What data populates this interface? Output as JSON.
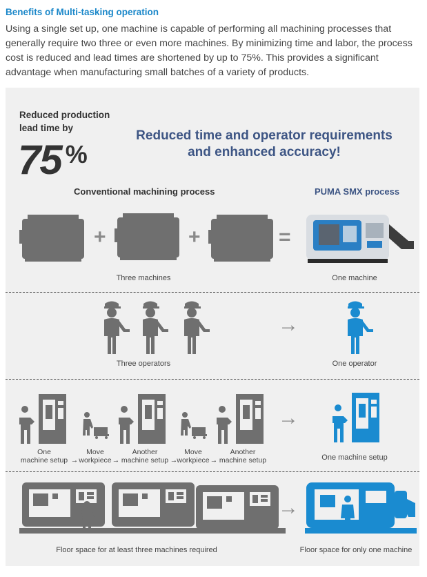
{
  "heading": "Benefits of Multi-tasking operation",
  "intro": "Using a single set up, one machine is capable of performing all machining processes that generally require two three or even more machines. By minimizing time and labor, the process cost is reduced and lead times are shortened by up to 75%. This provides a significant advantage when manufacturing small batches of a variety of products.",
  "lead_time": {
    "label_line1": "Reduced production",
    "label_line2": "lead time by",
    "value": "75",
    "unit": "%"
  },
  "headline": {
    "line1": "Reduced time and operator requirements",
    "line2": "and enhanced accuracy!"
  },
  "columns": {
    "conventional": "Conventional machining process",
    "puma": "PUMA SMX process"
  },
  "rows": {
    "machines": {
      "left": "Three machines",
      "right": "One machine"
    },
    "operators": {
      "left": "Three operators",
      "right": "One operator"
    },
    "setup": {
      "steps": [
        {
          "line1": "One",
          "line2": "machine setup"
        },
        {
          "line1": "Move",
          "line2": "workpiece"
        },
        {
          "line1": "Another",
          "line2": "machine setup"
        },
        {
          "line1": "Move",
          "line2": "workpiece"
        },
        {
          "line1": "Another",
          "line2": "machine setup"
        }
      ],
      "arrow": "→",
      "right": "One machine setup"
    },
    "floor": {
      "left": "Floor space for at least three machines required",
      "right": "Floor space for only one machine"
    }
  },
  "symbols": {
    "plus": "+",
    "equals": "="
  },
  "colors": {
    "heading": "#1a87c9",
    "headline": "#3d5584",
    "icon_gray": "#6f6f6f",
    "icon_blue": "#1a8bd0"
  }
}
